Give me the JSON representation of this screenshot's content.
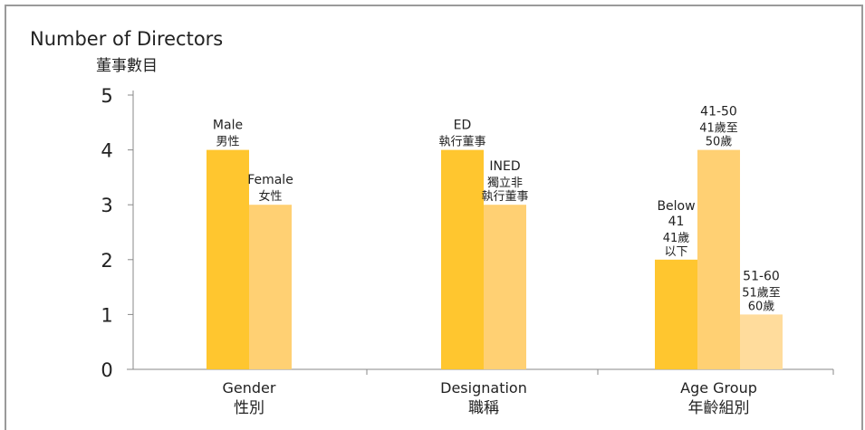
{
  "chart_data": {
    "type": "bar",
    "title": "Number of Directors",
    "subtitle": "董事數目",
    "ylim": [
      0,
      5
    ],
    "y_ticks": [
      0,
      1,
      2,
      3,
      4,
      5
    ],
    "grid": false,
    "groups": [
      {
        "label": "Gender",
        "label_zh": "性別",
        "bars": [
          {
            "label": "Male",
            "label_zh": "男性",
            "value": 4,
            "color": "#FFC62F"
          },
          {
            "label": "Female",
            "label_zh": "女性",
            "value": 3,
            "color": "#FFD073"
          }
        ]
      },
      {
        "label": "Designation",
        "label_zh": "職稱",
        "bars": [
          {
            "label": "ED",
            "label_zh": "執行董事",
            "value": 4,
            "color": "#FFC62F"
          },
          {
            "label": "INED",
            "label_zh": "獨立非\n執行董事",
            "value": 3,
            "color": "#FFD073"
          }
        ]
      },
      {
        "label": "Age Group",
        "label_zh": "年齡組別",
        "bars": [
          {
            "label": "Below\n41",
            "label_zh": "41歲\n以下",
            "value": 2,
            "color": "#FFC62F"
          },
          {
            "label": "41-50",
            "label_zh": "41歲至\n50歲",
            "value": 4,
            "color": "#FFD073"
          },
          {
            "label": "51-60",
            "label_zh": "51歲至\n60歲",
            "value": 1,
            "color": "#FFDC9C"
          }
        ]
      }
    ]
  }
}
